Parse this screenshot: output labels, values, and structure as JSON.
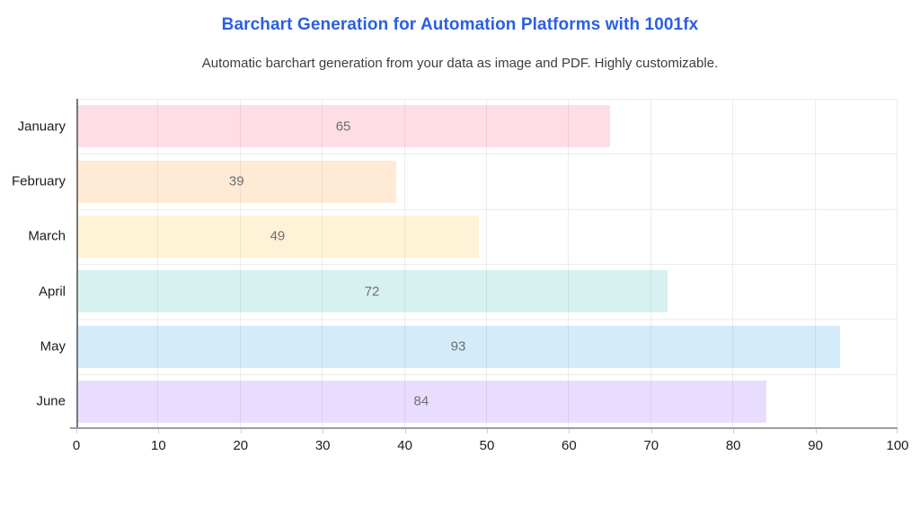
{
  "header": {
    "title": "Barchart Generation for Automation Platforms with 1001fx",
    "subtitle": "Automatic barchart generation from your data as image and PDF. Highly customizable."
  },
  "chart_data": {
    "type": "bar",
    "orientation": "horizontal",
    "title": "Barchart Generation for Automation Platforms with 1001fx",
    "subtitle": "Automatic barchart generation from your data as image and PDF. Highly customizable.",
    "categories": [
      "January",
      "February",
      "March",
      "April",
      "May",
      "June"
    ],
    "values": [
      65,
      39,
      49,
      72,
      93,
      84
    ],
    "xlabel": "",
    "ylabel": "",
    "xlim": [
      0,
      100
    ],
    "x_ticks": [
      0,
      10,
      20,
      30,
      40,
      50,
      60,
      70,
      80,
      90,
      100
    ],
    "grid": true,
    "legend": false,
    "bar_fills": [
      "rgba(255, 99, 132, 0.22)",
      "rgba(255, 159, 64, 0.22)",
      "rgba(255, 205, 86, 0.24)",
      "rgba(75, 192, 192, 0.22)",
      "rgba(54, 162, 235, 0.22)",
      "rgba(153, 102, 255, 0.22)"
    ],
    "bar_fills_hex": [
      "#FFE0E6",
      "#FFECD9",
      "#FFF5DD",
      "#DBF2F2",
      "#D7ECFB",
      "#EBE0FF"
    ]
  },
  "style": {
    "background": "#ffffff",
    "title_color": "#2b5fe3",
    "subtitle_color": "#3d3d3d",
    "y_axis_color": "#777777",
    "x_axis_color": "#9e9e9e",
    "grid_color": "#ececec",
    "tick_mark_color": "#d0d0d0",
    "tick_label_color": "#1c1c1c",
    "category_label_color": "#1c1c1c",
    "value_label_color": "#6e6e6e"
  }
}
